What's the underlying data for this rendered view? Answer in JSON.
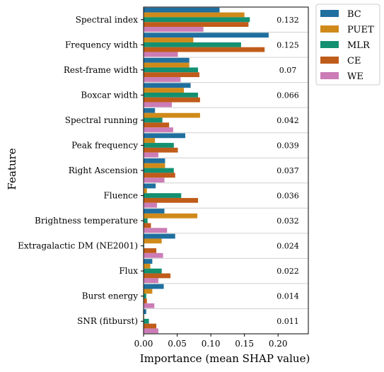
{
  "chart_data": {
    "type": "bar",
    "orientation": "horizontal",
    "xlabel": "Importance (mean SHAP value)",
    "ylabel": "Feature",
    "xlim": [
      0,
      0.245
    ],
    "xticks": [
      "0.00",
      "0.05",
      "0.10",
      "0.15",
      "0.20"
    ],
    "xtick_values": [
      0,
      0.05,
      0.1,
      0.15,
      0.2
    ],
    "grid": "horizontal separators between categories",
    "legend_position": "outside-top-right",
    "categories": [
      "Spectral index",
      "Frequency width",
      "Rest-frame width",
      "Boxcar width",
      "Spectral running",
      "Peak frequency",
      "Right Ascension",
      "Fluence",
      "Brightness temperature",
      "Extragalactic DM (NE2001)",
      "Flux",
      "Burst energy",
      "SNR (fitburst)"
    ],
    "value_labels": [
      "0.132",
      "0.125",
      "0.07",
      "0.066",
      "0.042",
      "0.039",
      "0.037",
      "0.036",
      "0.032",
      "0.024",
      "0.022",
      "0.014",
      "0.011"
    ],
    "series": [
      {
        "name": "BC",
        "color": "#1f6f9f",
        "values": [
          0.113,
          0.186,
          0.068,
          0.07,
          0.017,
          0.062,
          0.032,
          0.018,
          0.031,
          0.047,
          0.013,
          0.03,
          0.004
        ]
      },
      {
        "name": "PUET",
        "color": "#d08a1a",
        "values": [
          0.15,
          0.074,
          0.068,
          0.06,
          0.084,
          0.017,
          0.032,
          0.005,
          0.08,
          0.027,
          0.01,
          0.013,
          0.001
        ]
      },
      {
        "name": "MLR",
        "color": "#139070",
        "values": [
          0.158,
          0.145,
          0.081,
          0.081,
          0.028,
          0.045,
          0.045,
          0.056,
          0.006,
          0.001,
          0.027,
          0.004,
          0.008
        ]
      },
      {
        "name": "CE",
        "color": "#c05c1a",
        "values": [
          0.156,
          0.18,
          0.083,
          0.084,
          0.038,
          0.051,
          0.047,
          0.081,
          0.011,
          0.019,
          0.04,
          0.005,
          0.019
        ]
      },
      {
        "name": "WE",
        "color": "#cc7cb6",
        "values": [
          0.089,
          0.051,
          0.055,
          0.042,
          0.044,
          0.022,
          0.031,
          0.02,
          0.035,
          0.029,
          0.022,
          0.016,
          0.022
        ]
      }
    ]
  }
}
